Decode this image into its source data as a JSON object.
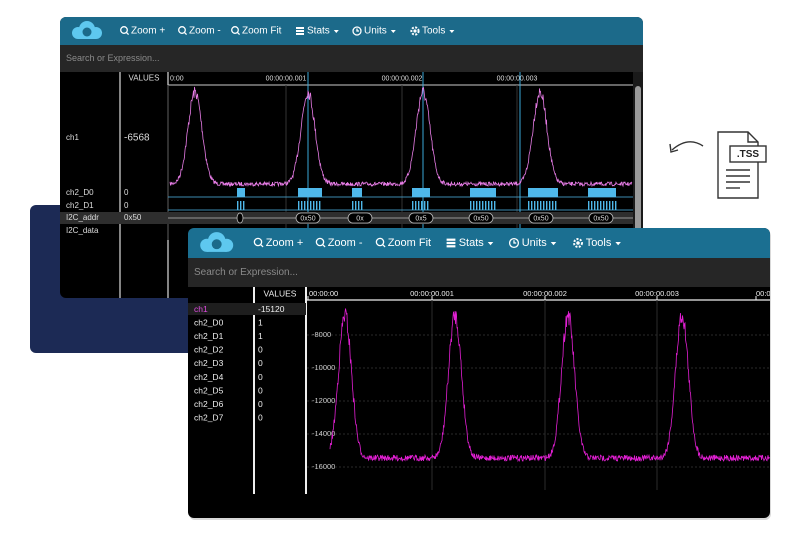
{
  "icon_label": ".TSS",
  "back_window": {
    "toolbar": [
      "Zoom +",
      "Zoom -",
      "Zoom Fit",
      "Stats",
      "Units",
      "Tools"
    ],
    "search_placeholder": "Search or Expression...",
    "values_header": "VALUES",
    "time_labels": [
      "0:00",
      "00:00:00.001",
      "00:00:00.002",
      "00:00:00.003"
    ],
    "channels": [
      {
        "name": "ch1",
        "value": -6568
      },
      {
        "name": "ch2_D0",
        "value": 0
      },
      {
        "name": "ch2_D1",
        "value": 0
      },
      {
        "name": "I2C_addr",
        "value": "0x50"
      },
      {
        "name": "I2C_data"
      }
    ],
    "i2c_labels": [
      "0x50",
      "0x",
      "0x5",
      "0x50",
      "0x50",
      "0x50"
    ]
  },
  "front_window": {
    "toolbar": [
      "Zoom +",
      "Zoom -",
      "Zoom Fit",
      "Stats",
      "Units",
      "Tools"
    ],
    "search_placeholder": "Search or Expression...",
    "values_header": "VALUES",
    "time_labels": [
      "00:00:00",
      "00:00:00.001",
      "00:00:00.002",
      "00:00:00.003",
      "00:00"
    ],
    "y_labels": [
      "-8000",
      "-10000",
      "-12000",
      "-14000",
      "-16000"
    ],
    "channels": [
      {
        "name": "ch1",
        "value": -15120
      },
      {
        "name": "ch2_D0",
        "value": 1
      },
      {
        "name": "ch2_D1",
        "value": 1
      },
      {
        "name": "ch2_D2",
        "value": 0
      },
      {
        "name": "ch2_D3",
        "value": 0
      },
      {
        "name": "ch2_D4",
        "value": 0
      },
      {
        "name": "ch2_D5",
        "value": 0
      },
      {
        "name": "ch2_D6",
        "value": 0
      },
      {
        "name": "ch2_D7",
        "value": 0
      }
    ]
  }
}
